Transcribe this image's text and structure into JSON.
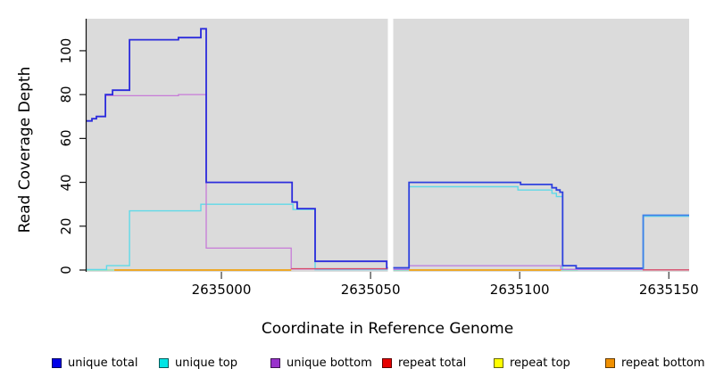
{
  "chart_data": {
    "type": "line",
    "subtype": "step-coverage-plot",
    "xlabel": "Coordinate in Reference Genome",
    "ylabel": "Read Coverage Depth",
    "xlim": [
      2634954.8,
      2635156.8
    ],
    "ylim": [
      0,
      114.6
    ],
    "x_ticks": [
      "2635000",
      "2635050",
      "2635100",
      "2635150"
    ],
    "x_tick_values": [
      2635000,
      2635050,
      2635100,
      2635150
    ],
    "y_ticks": [
      "0",
      "20",
      "40",
      "60",
      "80",
      "100"
    ],
    "y_tick_values": [
      0,
      20,
      40,
      60,
      80,
      100
    ],
    "grid": false,
    "panel_color": "#DBDBDB",
    "masked_gap": [
      2635055.8,
      2635057.6
    ],
    "legend_position": "bottom",
    "series": [
      {
        "name": "unique total",
        "color": "#2B2BDC",
        "width": 1.8,
        "segments": [
          [
            [
              2634954.8,
              68
            ],
            [
              2634956.6,
              69
            ],
            [
              2634958.1,
              70
            ],
            [
              2634961.1,
              80
            ],
            [
              2634963.5,
              82
            ],
            [
              2634969.2,
              105
            ],
            [
              2634985.6,
              106
            ],
            [
              2634993.1,
              110
            ],
            [
              2634994.9,
              40
            ],
            [
              2635023.7,
              31
            ],
            [
              2635025.4,
              28
            ],
            [
              2635031.4,
              4
            ],
            [
              2635055.4,
              1
            ],
            [
              2635055.8,
              1
            ]
          ],
          [
            [
              2635057.6,
              1
            ],
            [
              2635062.9,
              40
            ],
            [
              2635100.3,
              39
            ],
            [
              2635110.8,
              37.5
            ],
            [
              2635112.3,
              36.5
            ],
            [
              2635113.5,
              35.5
            ],
            [
              2635114.4,
              2
            ],
            [
              2635118.9,
              0.8
            ],
            [
              2635141.2,
              0.8
            ]
          ],
          [
            [
              2635141.2,
              0.8
            ],
            [
              2635141.4,
              25
            ],
            [
              2635156.8,
              25
            ]
          ]
        ],
        "segment_colors": [
          "#2B2BDC",
          "#2E41DE",
          "#4080E8"
        ]
      },
      {
        "name": "unique top",
        "color": "#5FD9E8",
        "width": 1.4,
        "segments": [
          [
            [
              2634954.8,
              0.2
            ],
            [
              2634961.5,
              2
            ],
            [
              2634969.2,
              27
            ],
            [
              2634993.1,
              30
            ],
            [
              2635024.0,
              27.6
            ],
            [
              2635031.4,
              0.2
            ],
            [
              2635055.8,
              0.2
            ]
          ],
          [
            [
              2635057.6,
              0.2
            ],
            [
              2635062.9,
              38
            ],
            [
              2635099.4,
              36.5
            ],
            [
              2635110.8,
              35
            ],
            [
              2635112.3,
              33.5
            ],
            [
              2635114.4,
              0.2
            ],
            [
              2635141.2,
              0.2
            ],
            [
              2635141.5,
              24.5
            ],
            [
              2635156.8,
              24.5
            ]
          ]
        ],
        "segment_colors": [
          "#5FD9E8",
          "#5FD9E8"
        ]
      },
      {
        "name": "unique bottom",
        "color": "#C87BD8",
        "width": 1.3,
        "segments": [
          [
            [
              2634961.1,
              79.5
            ],
            [
              2634985.6,
              80
            ],
            [
              2634994.9,
              10
            ],
            [
              2635023.4,
              0.5
            ],
            [
              2635055.8,
              0.5
            ]
          ],
          [
            [
              2635057.6,
              0.3
            ],
            [
              2635062.9,
              2
            ],
            [
              2635113.8,
              0.3
            ],
            [
              2635141.2,
              0.3
            ]
          ]
        ],
        "segment_colors": [
          "#C87BD8",
          "#B87BE0"
        ]
      },
      {
        "name": "repeat total",
        "color": "#D84868",
        "width": 1.3,
        "segments": [
          [
            [
              2635023.4,
              0.6
            ],
            [
              2635055.8,
              0.6
            ]
          ],
          [
            [
              2635141.2,
              0.1
            ],
            [
              2635156.8,
              0.1
            ]
          ]
        ],
        "segment_colors": [
          "#D84868",
          "#D84868"
        ]
      },
      {
        "name": "repeat top",
        "color": "#E8E800",
        "width": 1.2,
        "segments": [
          [
            [
              2634964.1,
              0
            ],
            [
              2635023.4,
              0
            ]
          ],
          [
            [
              2635062.9,
              0
            ],
            [
              2635113.8,
              0
            ]
          ]
        ],
        "segment_colors": [
          "#E8E800",
          "#E8E800"
        ]
      },
      {
        "name": "repeat bottom",
        "color": "#F29500",
        "width": 1.6,
        "segments": [
          [
            [
              2634964.1,
              0
            ],
            [
              2635023.4,
              0
            ]
          ],
          [
            [
              2635062.9,
              0
            ],
            [
              2635113.8,
              0
            ]
          ]
        ],
        "segment_colors": [
          "#F29500",
          "#F29500"
        ]
      }
    ],
    "zero_line_overlaps": [
      {
        "from": 2634954.8,
        "to": 2634964.1,
        "color": "#9AE4AE"
      },
      {
        "from": 2635057.6,
        "to": 2635062.9,
        "color": "#9AE4AE"
      },
      {
        "from": 2635113.8,
        "to": 2635119.5,
        "color": "#9AE4AE"
      }
    ],
    "legend": [
      {
        "label": "unique total",
        "color": "#0000E8"
      },
      {
        "label": "unique top",
        "color": "#00E5E5"
      },
      {
        "label": "unique bottom",
        "color": "#9932CC"
      },
      {
        "label": "repeat total",
        "color": "#E60000"
      },
      {
        "label": "repeat top",
        "color": "#FFFF00"
      },
      {
        "label": "repeat bottom",
        "color": "#F09000"
      }
    ]
  },
  "titles": {
    "x_axis": "Coordinate in Reference Genome",
    "y_axis": "Read Coverage Depth"
  }
}
